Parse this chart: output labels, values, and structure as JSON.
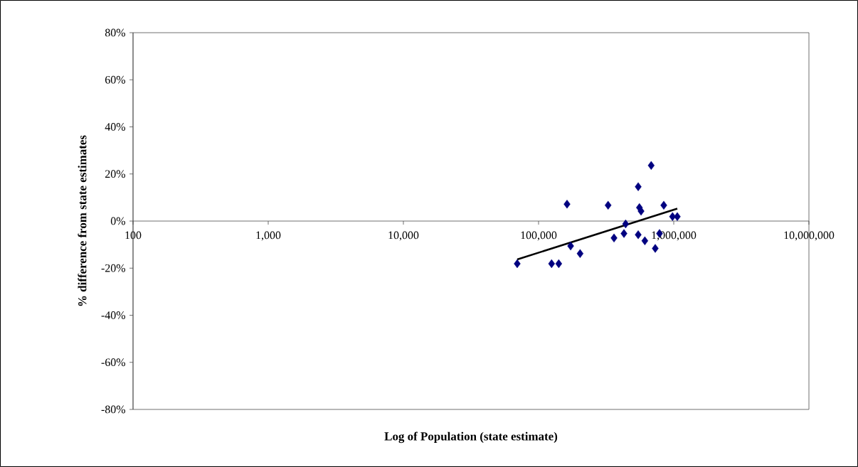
{
  "chart_data": {
    "type": "scatter",
    "xlabel": "Log of Population (state estimate)",
    "ylabel": "% difference from state estimates",
    "log": "x",
    "marker": "diamond",
    "grid": false,
    "xlim": [
      100,
      10000000
    ],
    "ylim": [
      -80,
      80
    ],
    "xticks": [
      {
        "value": 100,
        "label": "100"
      },
      {
        "value": 1000,
        "label": "1,000"
      },
      {
        "value": 10000,
        "label": "10,000"
      },
      {
        "value": 100000,
        "label": "100,000"
      },
      {
        "value": 1000000,
        "label": "1,000,000"
      },
      {
        "value": 10000000,
        "label": "10,000,000"
      }
    ],
    "yticks": [
      {
        "value": -80,
        "label": "-80%"
      },
      {
        "value": -60,
        "label": "-60%"
      },
      {
        "value": -40,
        "label": "-40%"
      },
      {
        "value": -20,
        "label": "-20%"
      },
      {
        "value": 0,
        "label": "0%"
      },
      {
        "value": 20,
        "label": "20%"
      },
      {
        "value": 40,
        "label": "40%"
      },
      {
        "value": 60,
        "label": "60%"
      },
      {
        "value": 80,
        "label": "80%"
      }
    ],
    "series": [
      {
        "color": "#000080",
        "x": [
          69500,
          124800,
          141000,
          162400,
          172700,
          202900,
          326800,
          361500,
          428300,
          440700,
          545800,
          545800,
          557000,
          572900,
          611300,
          681200,
          729800,
          785000,
          843800,
          979700,
          1062000
        ],
        "values": [
          -18.1,
          -18.1,
          -18.1,
          7.2,
          -10.6,
          -13.8,
          6.7,
          -7.2,
          -5.3,
          -1.2,
          14.6,
          -5.8,
          5.7,
          4.2,
          -8.4,
          23.6,
          -11.6,
          -5.3,
          6.7,
          1.9,
          1.9
        ]
      },
      {
        "type": "line",
        "color": "#000000",
        "marker": "none",
        "x": [
          69500,
          1062000
        ],
        "values": [
          -16.3,
          5.3
        ]
      }
    ]
  }
}
